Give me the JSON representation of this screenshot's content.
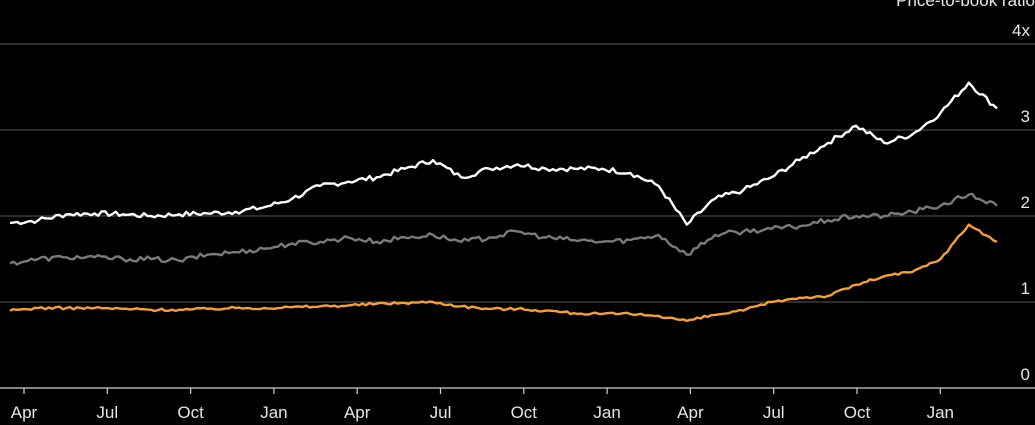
{
  "chart_data": {
    "type": "line",
    "unit_label": "Price-to-book ratio",
    "ylim": [
      0,
      4
    ],
    "y_ticks": [
      {
        "value": 0,
        "label": "0"
      },
      {
        "value": 1,
        "label": "1"
      },
      {
        "value": 2,
        "label": "2"
      },
      {
        "value": 3,
        "label": "3"
      },
      {
        "value": 4,
        "label": "4x"
      }
    ],
    "grid": true,
    "legend": "none",
    "x_ticks": [
      "Apr",
      "Jul",
      "Oct",
      "Jan",
      "Apr",
      "Jul",
      "Oct",
      "Jan",
      "Apr",
      "Jul",
      "Oct",
      "Jan"
    ],
    "x": [
      "Apr",
      "May",
      "Jun",
      "Jul",
      "Aug",
      "Sep",
      "Oct",
      "Nov",
      "Dec",
      "Jan",
      "Feb",
      "Mar",
      "Apr",
      "May",
      "Jun",
      "Jul",
      "Aug",
      "Sep",
      "Oct",
      "Nov",
      "Dec",
      "Jan",
      "Feb",
      "Mar",
      "Apr",
      "May",
      "Jun",
      "Jul",
      "Aug",
      "Sep",
      "Oct",
      "Nov",
      "Dec",
      "Jan",
      "Feb",
      "Mar"
    ],
    "series": [
      {
        "color": "#ffffff",
        "values": [
          1.92,
          1.95,
          2.02,
          2.03,
          2.02,
          2.0,
          2.02,
          2.03,
          2.05,
          2.1,
          2.2,
          2.35,
          2.4,
          2.45,
          2.55,
          2.65,
          2.45,
          2.55,
          2.6,
          2.55,
          2.55,
          2.55,
          2.5,
          2.35,
          1.9,
          2.2,
          2.3,
          2.45,
          2.65,
          2.85,
          3.05,
          2.85,
          2.95,
          3.2,
          3.55,
          3.25
        ]
      },
      {
        "color": "#7a7a7a",
        "values": [
          1.45,
          1.5,
          1.52,
          1.52,
          1.5,
          1.5,
          1.48,
          1.55,
          1.58,
          1.62,
          1.68,
          1.7,
          1.75,
          1.7,
          1.75,
          1.78,
          1.7,
          1.75,
          1.82,
          1.75,
          1.72,
          1.7,
          1.72,
          1.78,
          1.55,
          1.78,
          1.82,
          1.85,
          1.88,
          1.95,
          2.0,
          2.0,
          2.05,
          2.12,
          2.25,
          2.12
        ]
      },
      {
        "color": "#f5a031",
        "values": [
          0.9,
          0.93,
          0.93,
          0.93,
          0.92,
          0.91,
          0.91,
          0.92,
          0.93,
          0.93,
          0.94,
          0.95,
          0.96,
          0.98,
          0.99,
          1.0,
          0.95,
          0.92,
          0.92,
          0.9,
          0.87,
          0.86,
          0.86,
          0.84,
          0.78,
          0.85,
          0.9,
          1.0,
          1.05,
          1.07,
          1.2,
          1.3,
          1.35,
          1.5,
          1.9,
          1.7
        ]
      }
    ]
  }
}
